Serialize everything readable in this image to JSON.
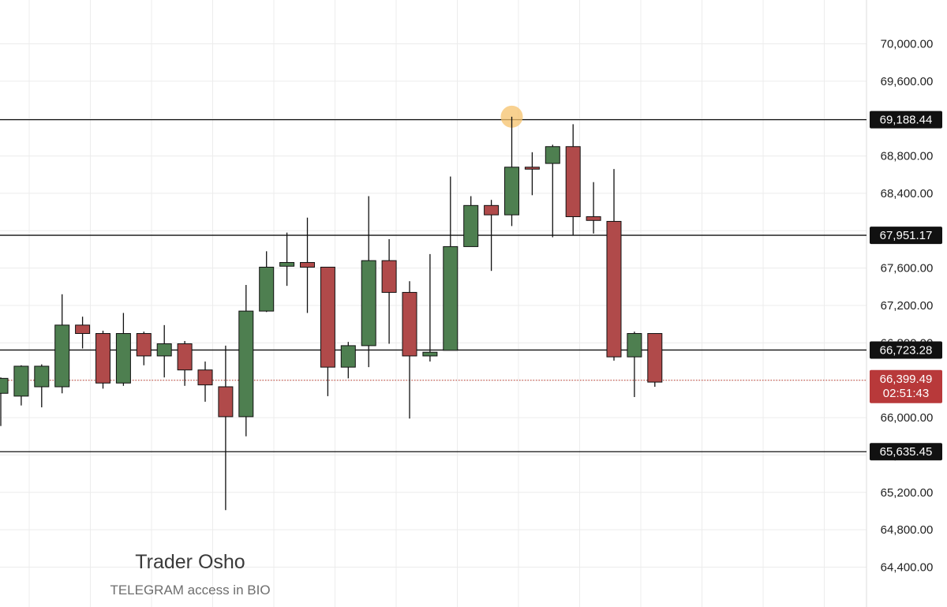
{
  "chart_data": {
    "type": "candlestick",
    "y_axis": {
      "ylim": [
        64100,
        70300
      ],
      "ticks": [
        64400,
        64800,
        65200,
        65600,
        66000,
        66400,
        66800,
        67200,
        67600,
        68000,
        68400,
        68800,
        69200,
        69600,
        70000
      ],
      "tick_labels": [
        "64,400.00",
        "64,800.00",
        "65,200.00",
        "65,600.00",
        "66,000.00",
        "66,400.00",
        "66,800.00",
        "67,200.00",
        "67,600.00",
        "68,000.00",
        "68,400.00",
        "68,800.00",
        "69,200.00",
        "69,600.00",
        "70,000.00"
      ],
      "position": "right"
    },
    "grid": true,
    "candles": [
      {
        "o": 66260,
        "h": 66430,
        "l": 65910,
        "c": 66420
      },
      {
        "o": 66230,
        "h": 66560,
        "l": 66130,
        "c": 66550
      },
      {
        "o": 66330,
        "h": 66570,
        "l": 66110,
        "c": 66550
      },
      {
        "o": 66330,
        "h": 67320,
        "l": 66260,
        "c": 66990
      },
      {
        "o": 66990,
        "h": 67080,
        "l": 66740,
        "c": 66900
      },
      {
        "o": 66900,
        "h": 66930,
        "l": 66310,
        "c": 66370
      },
      {
        "o": 66370,
        "h": 67120,
        "l": 66340,
        "c": 66900
      },
      {
        "o": 66900,
        "h": 66920,
        "l": 66560,
        "c": 66660
      },
      {
        "o": 66660,
        "h": 66990,
        "l": 66430,
        "c": 66790
      },
      {
        "o": 66790,
        "h": 66820,
        "l": 66340,
        "c": 66510
      },
      {
        "o": 66510,
        "h": 66600,
        "l": 66170,
        "c": 66350
      },
      {
        "o": 66330,
        "h": 66770,
        "l": 65010,
        "c": 66010
      },
      {
        "o": 66010,
        "h": 67420,
        "l": 65800,
        "c": 67140
      },
      {
        "o": 67140,
        "h": 67780,
        "l": 67130,
        "c": 67610
      },
      {
        "o": 67620,
        "h": 67980,
        "l": 67410,
        "c": 67660
      },
      {
        "o": 67660,
        "h": 68140,
        "l": 67120,
        "c": 67610
      },
      {
        "o": 67610,
        "h": 67610,
        "l": 66230,
        "c": 66540
      },
      {
        "o": 66540,
        "h": 66810,
        "l": 66420,
        "c": 66770
      },
      {
        "o": 66770,
        "h": 68370,
        "l": 66540,
        "c": 67680
      },
      {
        "o": 67680,
        "h": 67910,
        "l": 66790,
        "c": 67340
      },
      {
        "o": 67340,
        "h": 67460,
        "l": 65990,
        "c": 66660
      },
      {
        "o": 66660,
        "h": 67750,
        "l": 66600,
        "c": 66700
      },
      {
        "o": 66720,
        "h": 68580,
        "l": 66720,
        "c": 67830
      },
      {
        "o": 67830,
        "h": 68370,
        "l": 67830,
        "c": 68270
      },
      {
        "o": 68270,
        "h": 68330,
        "l": 67570,
        "c": 68170
      },
      {
        "o": 68170,
        "h": 69220,
        "l": 68050,
        "c": 68680
      },
      {
        "o": 68680,
        "h": 68840,
        "l": 68380,
        "c": 68670
      },
      {
        "o": 68720,
        "h": 68920,
        "l": 67930,
        "c": 68900
      },
      {
        "o": 68900,
        "h": 69140,
        "l": 67950,
        "c": 68150
      },
      {
        "o": 68150,
        "h": 68520,
        "l": 67970,
        "c": 68110
      },
      {
        "o": 68100,
        "h": 68660,
        "l": 66610,
        "c": 66650
      },
      {
        "o": 66650,
        "h": 66920,
        "l": 66220,
        "c": 66900
      },
      {
        "o": 66900,
        "h": 66900,
        "l": 66330,
        "c": 66380
      }
    ],
    "horizontal_lines": [
      {
        "value": 69188.44,
        "label": "69,188.44"
      },
      {
        "value": 67951.17,
        "label": "67,951.17"
      },
      {
        "value": 66723.28,
        "label": "66,723.28"
      },
      {
        "value": 65635.45,
        "label": "65,635.45"
      }
    ],
    "current_price": {
      "value": 66399.49,
      "label": "66,399.49",
      "countdown": "02:51:43"
    },
    "highlight": {
      "candle_index": 25,
      "price": 69220
    },
    "colors": {
      "up": "#4e7f50",
      "down": "#b04a4a",
      "wick": "#111111",
      "grid": "#ececec",
      "level_line": "#111111",
      "level_tag": "#111111",
      "current_tag": "#b8393a",
      "current_line": "#c0392b",
      "highlight": "#f5c26b"
    }
  },
  "watermark": {
    "title": "Trader Osho",
    "subtitle": "TELEGRAM access in BIO"
  }
}
